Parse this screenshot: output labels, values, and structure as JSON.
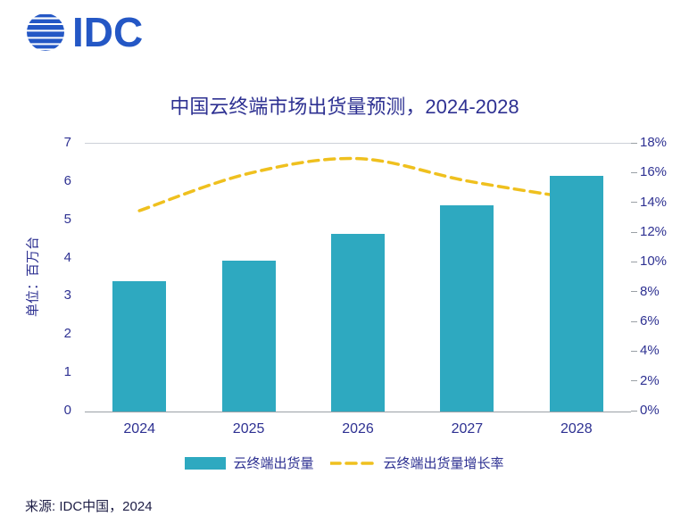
{
  "logo": {
    "text": "IDC"
  },
  "title": "中国云终端市场出货量预测，2024-2028",
  "source": "来源: IDC中国，2024",
  "colors": {
    "axis_blue": "#2E3192",
    "logo_blue": "#2457C5",
    "bar_teal": "#2EA9C0",
    "line_gold": "#EFC01E"
  },
  "chart_data": {
    "type": "bar",
    "title": "中国云终端市场出货量预测，2024-2028",
    "categories": [
      "2024",
      "2025",
      "2026",
      "2027",
      "2028"
    ],
    "series": [
      {
        "name": "云终端出货量",
        "type": "bar",
        "axis": "left",
        "values": [
          3.4,
          3.95,
          4.65,
          5.38,
          6.15
        ]
      },
      {
        "name": "云终端出货量增长率",
        "type": "line",
        "axis": "right",
        "style": "dashed",
        "values": [
          13.5,
          16.0,
          17.0,
          15.5,
          14.3
        ]
      }
    ],
    "ylabel_left": "单位：百万台",
    "ylabel_right": "",
    "ylim_left": [
      0,
      7
    ],
    "ylim_right": [
      0,
      18
    ],
    "y_left_ticks": [
      "0",
      "1",
      "2",
      "3",
      "4",
      "5",
      "6",
      "7"
    ],
    "y_right_ticks": [
      "0%",
      "2%",
      "4%",
      "6%",
      "8%",
      "10%",
      "12%",
      "14%",
      "16%",
      "18%"
    ],
    "grid": "off",
    "legend_position": "bottom",
    "legend": [
      {
        "label": "云终端出货量",
        "marker": "bar"
      },
      {
        "label": "云终端出货量增长率",
        "marker": "dashed-line"
      }
    ]
  }
}
